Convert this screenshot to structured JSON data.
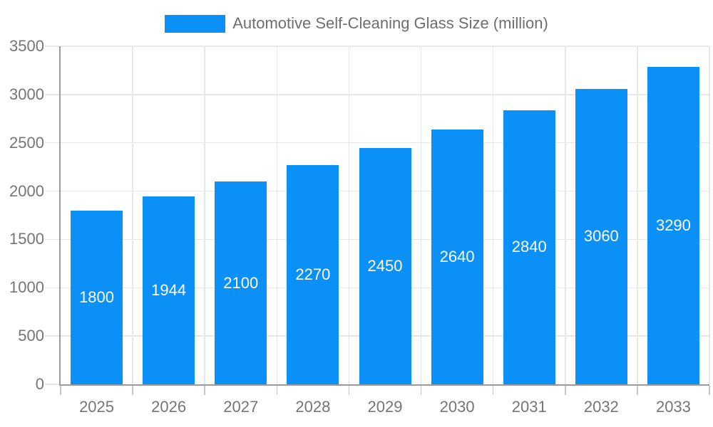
{
  "legend": {
    "label": "Automotive Self-Cleaning Glass Size (million)",
    "swatch_color": "#0a90f6"
  },
  "chart_data": {
    "type": "bar",
    "title": "Automotive Self-Cleaning Glass Size (million)",
    "categories": [
      "2025",
      "2026",
      "2027",
      "2028",
      "2029",
      "2030",
      "2031",
      "2032",
      "2033"
    ],
    "values": [
      1800,
      1944,
      2100,
      2270,
      2450,
      2640,
      2840,
      3060,
      3290
    ],
    "xlabel": "",
    "ylabel": "",
    "ylim": [
      0,
      3500
    ],
    "yticks": [
      0,
      500,
      1000,
      1500,
      2000,
      2500,
      3000,
      3500
    ],
    "grid": true,
    "legend_position": "top",
    "value_labels": "inside-middle"
  },
  "colors": {
    "bar": "#0a90f6",
    "axis": "#9a9a9a",
    "grid": "#e7e7e7",
    "tick_text": "#757575",
    "value_label": "#ffffff",
    "background": "#ffffff"
  }
}
